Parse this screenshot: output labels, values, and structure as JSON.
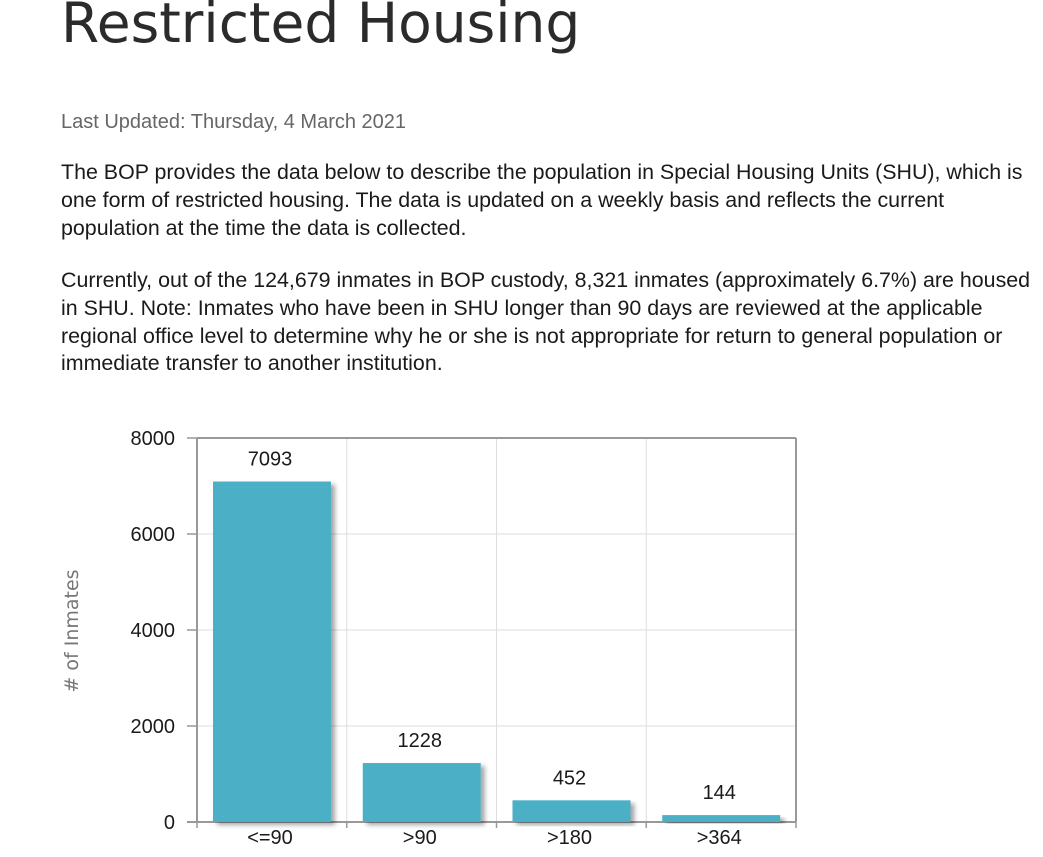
{
  "page": {
    "title": "Restricted Housing",
    "last_updated": "Last Updated: Thursday, 4 March 2021",
    "paragraph_1": "The BOP provides the data below to describe the population in Special Housing Units (SHU), which is one form of restricted housing. The data is updated on a weekly basis and reflects the current population at the time the data is collected.",
    "paragraph_2": "Currently, out of the 124,679 inmates in BOP custody, 8,321 inmates (approximately 6.7%) are housed in SHU. Note: Inmates who have been in SHU longer than 90 days are reviewed at the applicable regional office level to determine why he or she is not appropriate for return to general population or immediate transfer to another institution."
  },
  "chart_data": {
    "type": "bar",
    "categories": [
      "<=90",
      ">90",
      ">180",
      ">364"
    ],
    "values": [
      7093,
      1228,
      452,
      144
    ],
    "data_labels": [
      "7093",
      "1228",
      "452",
      "144"
    ],
    "title": "",
    "xlabel": "",
    "ylabel": "# of Inmates",
    "ylim": [
      0,
      8000
    ],
    "yticks": [
      0,
      2000,
      4000,
      6000,
      8000
    ],
    "ytick_labels": [
      "0",
      "2000",
      "4000",
      "6000",
      "8000"
    ],
    "grid": true,
    "legend": "none",
    "colors": {
      "bar": "#4bb0c6",
      "bar_shadow": "#c4c4c4",
      "grid": "#dedede",
      "frame": "#999999"
    }
  }
}
